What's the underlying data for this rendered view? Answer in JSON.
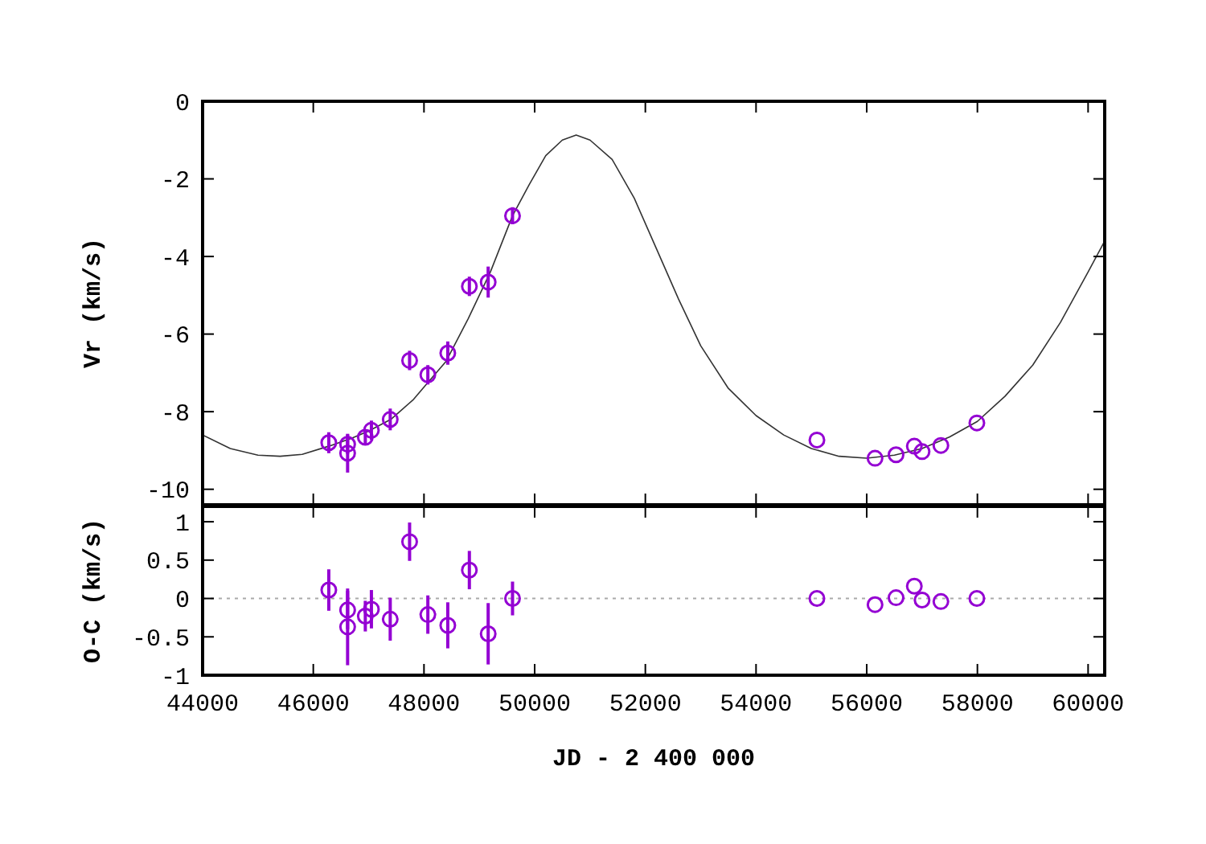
{
  "chart_data": [
    {
      "type": "scatter",
      "ylabel": "Vr (km/s)",
      "xlim": [
        44000,
        60300
      ],
      "xticks": [
        44000,
        46000,
        48000,
        50000,
        52000,
        54000,
        56000,
        58000,
        60000
      ],
      "ylim": [
        -10.4,
        0
      ],
      "yticks": [
        0,
        -2,
        -4,
        -6,
        -8,
        -10
      ],
      "tick_labels": "y",
      "series": [
        {
          "type": "line",
          "marker": "none",
          "color": "#333333",
          "x": [
            44000,
            44500,
            45000,
            45400,
            45800,
            46300,
            46700,
            47000,
            47400,
            47800,
            48100,
            48400,
            48800,
            49200,
            49600,
            49900,
            50200,
            50500,
            50750,
            51000,
            51400,
            51800,
            52200,
            52600,
            53000,
            53500,
            54000,
            54500,
            55000,
            55500,
            56000,
            56500,
            57000,
            57500,
            58000,
            58500,
            59000,
            59500,
            60000,
            60300
          ],
          "values": [
            -8.6,
            -8.95,
            -9.12,
            -9.15,
            -9.1,
            -8.88,
            -8.68,
            -8.5,
            -8.2,
            -7.7,
            -7.2,
            -6.7,
            -5.6,
            -4.4,
            -2.95,
            -2.15,
            -1.4,
            -1.0,
            -0.87,
            -1.0,
            -1.5,
            -2.5,
            -3.8,
            -5.1,
            -6.3,
            -7.4,
            -8.1,
            -8.6,
            -8.95,
            -9.15,
            -9.2,
            -9.12,
            -8.95,
            -8.65,
            -8.25,
            -7.6,
            -6.8,
            -5.7,
            -4.4,
            -3.6
          ]
        },
        {
          "marker": "circle",
          "color": "#9400d3",
          "x": [
            46280,
            46620,
            46620,
            46940,
            47050,
            47390,
            47740,
            48070,
            48430,
            48820,
            49160,
            49600,
            55100,
            56150,
            56530,
            56860,
            57000,
            57340,
            57990
          ],
          "values": [
            -8.8,
            -8.84,
            -9.07,
            -8.66,
            -8.48,
            -8.2,
            -6.68,
            -7.05,
            -6.49,
            -4.77,
            -4.66,
            -2.95,
            -8.73,
            -9.2,
            -9.11,
            -8.89,
            -9.03,
            -8.87,
            -8.29
          ],
          "errors": [
            0.27,
            0.25,
            0.5,
            0.2,
            0.25,
            0.28,
            0.25,
            0.25,
            0.3,
            0.25,
            0.4,
            0.22,
            null,
            null,
            null,
            null,
            null,
            null,
            null
          ]
        }
      ]
    },
    {
      "type": "scatter",
      "xlabel": "JD - 2 400 000",
      "ylabel": "O-C (km/s)",
      "xlim": [
        44000,
        60300
      ],
      "xticks": [
        44000,
        46000,
        48000,
        50000,
        52000,
        54000,
        56000,
        58000,
        60000
      ],
      "ylim": [
        -1,
        1.2
      ],
      "yticks": [
        1,
        0.5,
        0,
        -0.5,
        -1
      ],
      "ref_lines": [
        {
          "axis": "y",
          "value": 0,
          "color": "#aaaaaa",
          "line_style": "dotted"
        }
      ],
      "series": [
        {
          "marker": "circle",
          "color": "#9400d3",
          "x": [
            46280,
            46620,
            46620,
            46940,
            47050,
            47390,
            47740,
            48070,
            48430,
            48820,
            49160,
            49600,
            55100,
            56150,
            56530,
            56860,
            57000,
            57340,
            57990
          ],
          "values": [
            0.11,
            -0.15,
            -0.37,
            -0.23,
            -0.14,
            -0.27,
            0.74,
            -0.21,
            -0.35,
            0.37,
            -0.46,
            0,
            0,
            -0.08,
            0.01,
            0.16,
            -0.02,
            -0.04,
            0
          ],
          "errors": [
            0.27,
            0.25,
            0.5,
            0.2,
            0.25,
            0.28,
            0.25,
            0.25,
            0.3,
            0.25,
            0.4,
            0.22,
            null,
            null,
            null,
            null,
            null,
            null,
            null
          ]
        }
      ]
    }
  ]
}
